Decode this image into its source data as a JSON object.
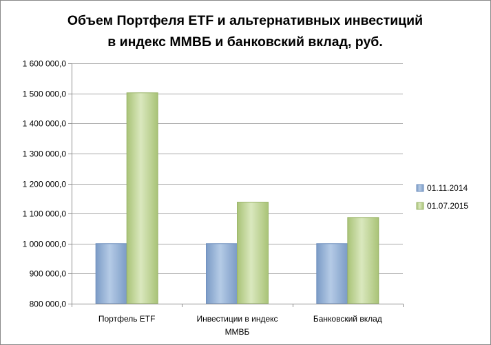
{
  "chart_data": {
    "type": "bar",
    "title_lines": [
      "Объем Портфеля ETF и альтернативных инвестиций",
      "в индекс ММВБ и банковский вклад, руб."
    ],
    "categories": [
      [
        "Портфель ETF"
      ],
      [
        "Инвестиции в индекс",
        "ММВБ"
      ],
      [
        "Банковский вклад"
      ]
    ],
    "series": [
      {
        "name": "01.11.2014",
        "color": "#95B3D7",
        "values": [
          1000000,
          1000000,
          1000000
        ]
      },
      {
        "name": "01.07.2015",
        "color": "#C3D69B",
        "values": [
          1502000,
          1138000,
          1087000
        ]
      }
    ],
    "ylim": [
      800000,
      1600000
    ],
    "ytick_step": 100000,
    "ytick_labels": [
      "800 000,0",
      "900 000,0",
      "1 000 000,0",
      "1 100 000,0",
      "1 200 000,0",
      "1 300 000,0",
      "1 400 000,0",
      "1 500 000,0",
      "1 600 000,0"
    ],
    "grid": true,
    "legend_position": "right"
  }
}
